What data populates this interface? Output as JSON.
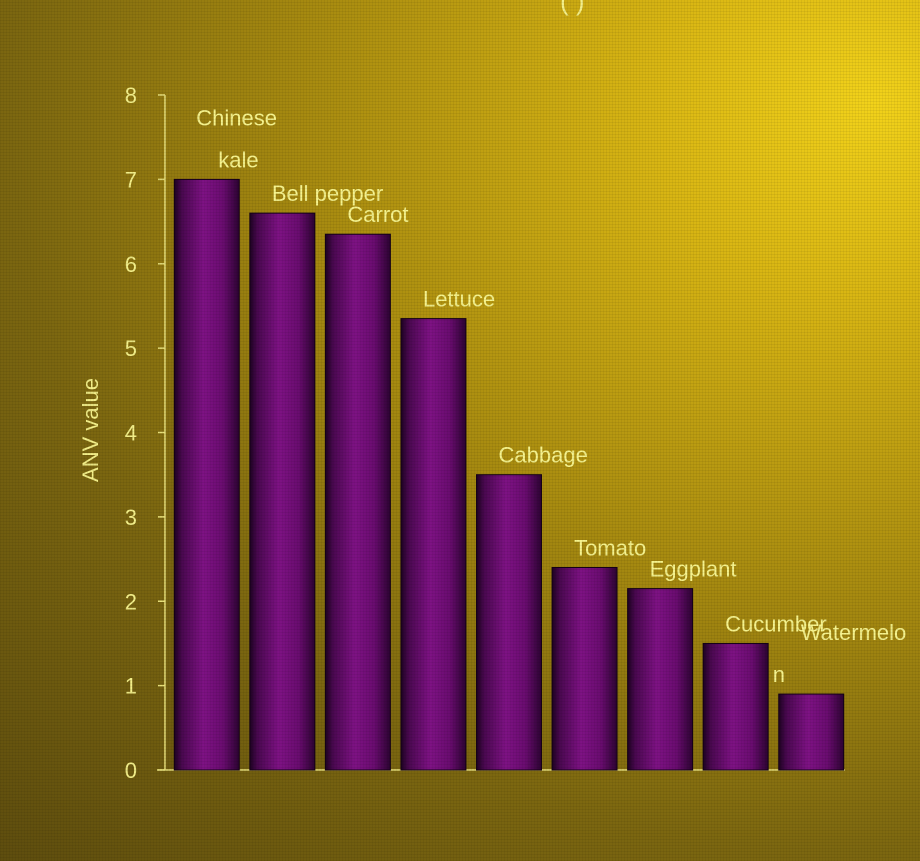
{
  "header": {
    "cropped_title": "(                    )"
  },
  "chart_data": {
    "type": "bar",
    "categories": [
      "Chinese kale",
      "Bell pepper",
      "Carrot",
      "Lettuce",
      "Cabbage",
      "Tomato",
      "Eggplant",
      "Cucumber",
      "Watermelon"
    ],
    "data_labels": [
      [
        "Chinese",
        "kale"
      ],
      [
        "Bell pepper"
      ],
      [
        "Carrot"
      ],
      [
        "Lettuce"
      ],
      [
        "Cabbage"
      ],
      [
        "Tomato"
      ],
      [
        "Eggplant"
      ],
      [
        "Cucumber"
      ],
      [
        "Watermelo",
        "n"
      ]
    ],
    "values": [
      7.0,
      6.6,
      6.35,
      5.35,
      3.5,
      2.4,
      2.15,
      1.5,
      0.9
    ],
    "ylabel": "ANV value",
    "xlabel": "",
    "ylim": [
      0,
      8
    ],
    "yticks": [
      "0",
      "1",
      "2",
      "3",
      "4",
      "5",
      "6",
      "7",
      "8"
    ],
    "grid": false,
    "legend": "none",
    "colors": {
      "bar": "#7a0e7e",
      "bar_dark": "#2a0230",
      "text": "#f4f08a"
    }
  }
}
